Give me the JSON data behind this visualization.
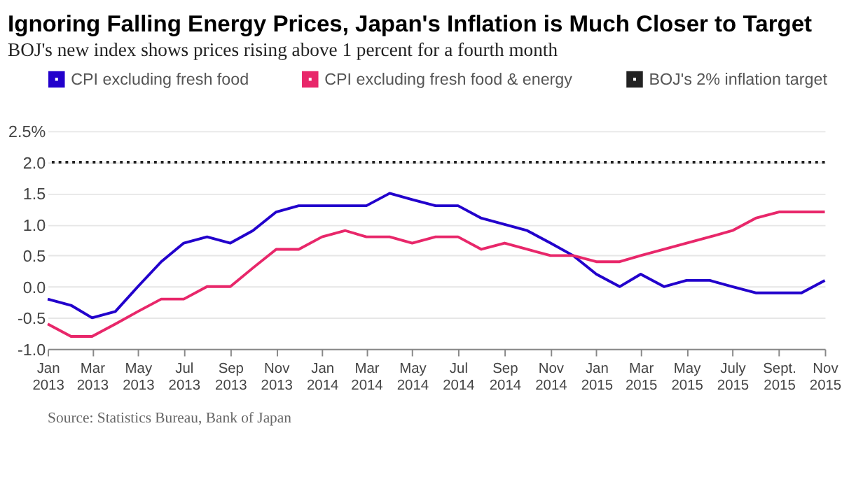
{
  "chart_data": {
    "type": "line",
    "title": "Ignoring Falling Energy Prices, Japan's Inflation is Much Closer to Target",
    "subtitle": "BOJ's new index shows prices rising above 1 percent for a fourth month",
    "x": [
      "2013-01",
      "2013-02",
      "2013-03",
      "2013-04",
      "2013-05",
      "2013-06",
      "2013-07",
      "2013-08",
      "2013-09",
      "2013-10",
      "2013-11",
      "2013-12",
      "2014-01",
      "2014-02",
      "2014-03",
      "2014-04",
      "2014-05",
      "2014-06",
      "2014-07",
      "2014-08",
      "2014-09",
      "2014-10",
      "2014-11",
      "2014-12",
      "2015-01",
      "2015-02",
      "2015-03",
      "2015-04",
      "2015-05",
      "2015-06",
      "2015-07",
      "2015-08",
      "2015-09",
      "2015-10",
      "2015-11"
    ],
    "series": [
      {
        "name": "CPI excluding fresh food",
        "color": "#2200cc",
        "values": [
          -0.2,
          -0.3,
          -0.5,
          -0.4,
          0.0,
          0.4,
          0.7,
          0.8,
          0.7,
          0.9,
          1.2,
          1.3,
          1.3,
          1.3,
          1.3,
          1.5,
          1.4,
          1.3,
          1.3,
          1.1,
          1.0,
          0.9,
          0.7,
          0.5,
          0.2,
          0.0,
          0.2,
          0.0,
          0.1,
          0.1,
          0.0,
          -0.1,
          -0.1,
          -0.1,
          0.1
        ]
      },
      {
        "name": "CPI excluding fresh food & energy",
        "color": "#e8276a",
        "values": [
          -0.6,
          -0.8,
          -0.8,
          -0.6,
          -0.4,
          -0.2,
          -0.2,
          0.0,
          0.0,
          0.3,
          0.6,
          0.6,
          0.8,
          0.9,
          0.8,
          0.8,
          0.7,
          0.8,
          0.8,
          0.6,
          0.7,
          0.6,
          0.5,
          0.5,
          0.4,
          0.4,
          0.5,
          0.6,
          0.7,
          0.8,
          0.9,
          1.1,
          1.2,
          1.2,
          1.2
        ]
      }
    ],
    "ref_lines": [
      {
        "axis": "y",
        "value": 2.0,
        "label": "BOJ's 2% inflation target",
        "color": "#222222",
        "line_style": "dotted"
      }
    ],
    "xlim": [
      "2013-01",
      "2015-11"
    ],
    "xticks": [
      {
        "value": "2013-01",
        "label": "Jan 2013"
      },
      {
        "value": "2013-03",
        "label": "Mar 2013"
      },
      {
        "value": "2013-05",
        "label": "May 2013"
      },
      {
        "value": "2013-07",
        "label": "Jul 2013"
      },
      {
        "value": "2013-09",
        "label": "Sep 2013"
      },
      {
        "value": "2013-11",
        "label": "Nov 2013"
      },
      {
        "value": "2014-01",
        "label": "Jan 2014"
      },
      {
        "value": "2014-03",
        "label": "Mar 2014"
      },
      {
        "value": "2014-05",
        "label": "May 2014"
      },
      {
        "value": "2014-07",
        "label": "Jul 2014"
      },
      {
        "value": "2014-09",
        "label": "Sep 2014"
      },
      {
        "value": "2014-11",
        "label": "Nov 2014"
      },
      {
        "value": "2015-01",
        "label": "Jan 2015"
      },
      {
        "value": "2015-03",
        "label": "Mar 2015"
      },
      {
        "value": "2015-05",
        "label": "May 2015"
      },
      {
        "value": "2015-07",
        "label": "July 2015"
      },
      {
        "value": "2015-09",
        "label": "Sept. 2015"
      },
      {
        "value": "2015-11",
        "label": "Nov 2015"
      }
    ],
    "ylim": [
      -1.0,
      2.5
    ],
    "yticks": [
      {
        "value": -1.0,
        "label": "-1.0"
      },
      {
        "value": -0.5,
        "label": "-0.5"
      },
      {
        "value": 0,
        "label": "0.0"
      },
      {
        "value": 0.5,
        "label": "0.5"
      },
      {
        "value": 1.0,
        "label": "1.0"
      },
      {
        "value": 1.5,
        "label": "1.5"
      },
      {
        "value": 2.0,
        "label": "2.0"
      },
      {
        "value": 2.5,
        "label": "2.5%"
      }
    ],
    "grid": "y",
    "legend": "top",
    "marker": "none",
    "line_style": "solid",
    "annotations": [
      "Source: Statistics Bureau, Bank of Japan"
    ]
  }
}
